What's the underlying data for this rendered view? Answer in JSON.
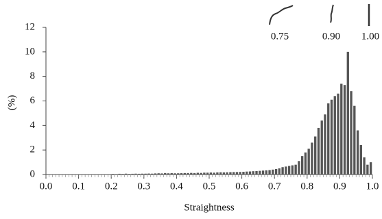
{
  "chart_data": {
    "type": "histogram",
    "xlabel": "Straightness",
    "ylabel": "(%)",
    "annotations": [
      "0.75",
      "0.90",
      "1.00"
    ],
    "color": "#555555",
    "bins": [
      0,
      0.01,
      0.02,
      0.03,
      0.04,
      0.05,
      0.06,
      0.07,
      0.08,
      0.09,
      0.1,
      0.11,
      0.12,
      0.13,
      0.14,
      0.15,
      0.16,
      0.17,
      0.18,
      0.19,
      0.2,
      0.21,
      0.22,
      0.23,
      0.24,
      0.25,
      0.26,
      0.27,
      0.28,
      0.29,
      0.3,
      0.31,
      0.32,
      0.33,
      0.34,
      0.35,
      0.36,
      0.37,
      0.38,
      0.39,
      0.4,
      0.41,
      0.42,
      0.43,
      0.44,
      0.45,
      0.46,
      0.47,
      0.48,
      0.49,
      0.5,
      0.51,
      0.52,
      0.53,
      0.54,
      0.55,
      0.56,
      0.57,
      0.58,
      0.59,
      0.6,
      0.61,
      0.62,
      0.63,
      0.64,
      0.65,
      0.66,
      0.67,
      0.68,
      0.69,
      0.7,
      0.71,
      0.72,
      0.73,
      0.74,
      0.75,
      0.76,
      0.77,
      0.78,
      0.79,
      0.8,
      0.81,
      0.82,
      0.83,
      0.84,
      0.85,
      0.86,
      0.87,
      0.88,
      0.89,
      0.9,
      0.91,
      0.92,
      0.93,
      0.94,
      0.95,
      0.96,
      0.97,
      0.98,
      0.99,
      1
    ],
    "values": [
      0.02,
      0.02,
      0.02,
      0.02,
      0.02,
      0.02,
      0.02,
      0.02,
      0.02,
      0.02,
      0.03,
      0.03,
      0.03,
      0.03,
      0.03,
      0.03,
      0.03,
      0.03,
      0.03,
      0.03,
      0.05,
      0.04,
      0.06,
      0.05,
      0.07,
      0.05,
      0.06,
      0.07,
      0.06,
      0.07,
      0.07,
      0.08,
      0.07,
      0.09,
      0.1,
      0.09,
      0.12,
      0.1,
      0.11,
      0.1,
      0.1,
      0.11,
      0.12,
      0.12,
      0.13,
      0.12,
      0.14,
      0.13,
      0.15,
      0.15,
      0.16,
      0.15,
      0.17,
      0.18,
      0.17,
      0.18,
      0.19,
      0.2,
      0.2,
      0.21,
      0.22,
      0.24,
      0.25,
      0.27,
      0.28,
      0.3,
      0.32,
      0.34,
      0.36,
      0.4,
      0.45,
      0.5,
      0.6,
      0.65,
      0.7,
      0.75,
      0.8,
      1.1,
      1.5,
      1.8,
      2.1,
      2.6,
      3.1,
      3.8,
      4.4,
      4.9,
      5.8,
      6.1,
      6.4,
      6.6,
      7.4,
      7.3,
      10,
      6.8,
      5.6,
      3.6,
      2.4,
      1.4,
      0.8,
      1.0
    ],
    "xlim": [
      0,
      1
    ],
    "xticks": [
      {
        "value": 0,
        "label": "0.0"
      },
      0.1,
      0.2,
      0.3,
      0.4,
      0.5,
      0.6,
      0.7,
      0.8,
      0.9,
      {
        "value": 1,
        "label": "1.0"
      }
    ],
    "ylim": [
      0,
      12
    ],
    "yticks": [
      0,
      2,
      4,
      6,
      8,
      10,
      12
    ]
  }
}
